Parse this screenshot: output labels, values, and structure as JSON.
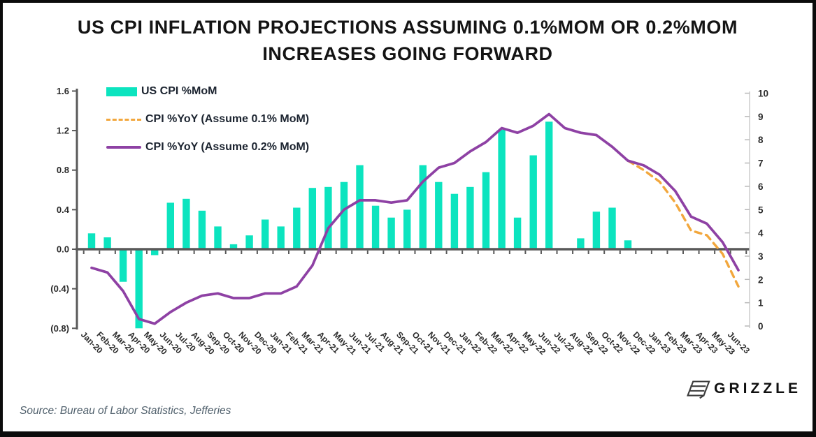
{
  "title": {
    "line1": "US CPI INFLATION PROJECTIONS ASSUMING 0.1%MOM OR 0.2%MOM",
    "line2": "INCREASES GOING FORWARD"
  },
  "legend": {
    "items": [
      {
        "label": "US CPI %MoM",
        "swatch": "bar",
        "color": "#0ce4bf"
      },
      {
        "label": "CPI %YoY (Assume 0.1% MoM)",
        "swatch": "dashed-line",
        "color": "#f2a73d"
      },
      {
        "label": "CPI %YoY (Assume 0.2% MoM)",
        "swatch": "solid-line",
        "color": "#8e41a4"
      }
    ]
  },
  "footer": {
    "source": "Source: Bureau of Labor Statistics, Jefferies"
  },
  "branding": {
    "name": "GRIZZLE",
    "logo_icon": "grizzle-logo-icon"
  },
  "chart_data": {
    "type": "bar",
    "subtype": "combo-bar-line",
    "title": "US CPI INFLATION PROJECTIONS ASSUMING 0.1%MOM OR 0.2%MOM INCREASES GOING FORWARD",
    "grid": false,
    "legend_position": "top-left",
    "projection_start_category": "Dec-22",
    "axis_color": "#595959",
    "right_axis_line_color": "#c9c9c9",
    "tick_label_color": "#2b2b2b",
    "categories": [
      "Jan-20",
      "Feb-20",
      "Mar-20",
      "Apr-20",
      "May-20",
      "Jun-20",
      "Jul-20",
      "Aug-20",
      "Sep-20",
      "Oct-20",
      "Nov-20",
      "Dec-20",
      "Jan-21",
      "Feb-21",
      "Mar-21",
      "Apr-21",
      "May-21",
      "Jun-21",
      "Jul-21",
      "Aug-21",
      "Sep-21",
      "Oct-21",
      "Nov-21",
      "Dec-21",
      "Jan-22",
      "Feb-22",
      "Mar-22",
      "Apr-22",
      "May-22",
      "Jun-22",
      "Jul-22",
      "Aug-22",
      "Sep-22",
      "Oct-22",
      "Nov-22",
      "Dec-22",
      "Jan-23",
      "Feb-23",
      "Mar-23",
      "Apr-23",
      "May-23",
      "Jun-23"
    ],
    "bar_series": {
      "name": "US CPI %MoM",
      "axis": "left",
      "color": "#0ce4bf",
      "values": [
        0.16,
        0.12,
        -0.33,
        -0.8,
        -0.06,
        0.47,
        0.51,
        0.39,
        0.23,
        0.05,
        0.14,
        0.3,
        0.23,
        0.42,
        0.62,
        0.63,
        0.68,
        0.85,
        0.44,
        0.32,
        0.4,
        0.85,
        0.68,
        0.56,
        0.63,
        0.78,
        1.21,
        0.32,
        0.95,
        1.29,
        0.01,
        0.11,
        0.38,
        0.42,
        0.09,
        null,
        null,
        null,
        null,
        null,
        null,
        null
      ]
    },
    "line_series": [
      {
        "name": "CPI %YoY (Assume 0.1% MoM)",
        "axis": "right",
        "color": "#f2a73d",
        "style": "dashed",
        "values": [
          null,
          null,
          null,
          null,
          null,
          null,
          null,
          null,
          null,
          null,
          null,
          null,
          null,
          null,
          null,
          null,
          null,
          null,
          null,
          null,
          null,
          null,
          null,
          null,
          null,
          null,
          null,
          null,
          null,
          null,
          null,
          null,
          null,
          null,
          7.1,
          6.7,
          6.2,
          5.3,
          4.1,
          3.9,
          3.1,
          1.7
        ]
      },
      {
        "name": "CPI %YoY (Assume 0.2% MoM)",
        "axis": "right",
        "color": "#8e41a4",
        "style": "solid",
        "values": [
          2.5,
          2.3,
          1.5,
          0.3,
          0.1,
          0.6,
          1.0,
          1.3,
          1.4,
          1.2,
          1.2,
          1.4,
          1.4,
          1.7,
          2.6,
          4.2,
          5.0,
          5.4,
          5.4,
          5.3,
          5.4,
          6.2,
          6.8,
          7.0,
          7.5,
          7.9,
          8.5,
          8.3,
          8.6,
          9.1,
          8.5,
          8.3,
          8.2,
          7.7,
          7.1,
          6.9,
          6.5,
          5.8,
          4.7,
          4.4,
          3.6,
          2.4
        ]
      }
    ],
    "left_axis": {
      "min": -0.8,
      "max": 1.6,
      "ticks": [
        {
          "label": "1.6",
          "value": 1.6
        },
        {
          "label": "1.2",
          "value": 1.2
        },
        {
          "label": "0.8",
          "value": 0.8
        },
        {
          "label": "0.4",
          "value": 0.4
        },
        {
          "label": "0.0",
          "value": 0
        },
        {
          "label": "(0.4)",
          "value": -0.4
        },
        {
          "label": "(0.8)",
          "value": -0.8
        }
      ]
    },
    "right_axis": {
      "min": 0,
      "max": 10,
      "ticks": [
        {
          "label": "10",
          "value": 10
        },
        {
          "label": "9",
          "value": 9
        },
        {
          "label": "8",
          "value": 8
        },
        {
          "label": "7",
          "value": 7
        },
        {
          "label": "6",
          "value": 6
        },
        {
          "label": "5",
          "value": 5
        },
        {
          "label": "4",
          "value": 4
        },
        {
          "label": "3",
          "value": 3
        },
        {
          "label": "2",
          "value": 2
        },
        {
          "label": "1",
          "value": 1
        },
        {
          "label": "0",
          "value": 0
        }
      ]
    }
  }
}
